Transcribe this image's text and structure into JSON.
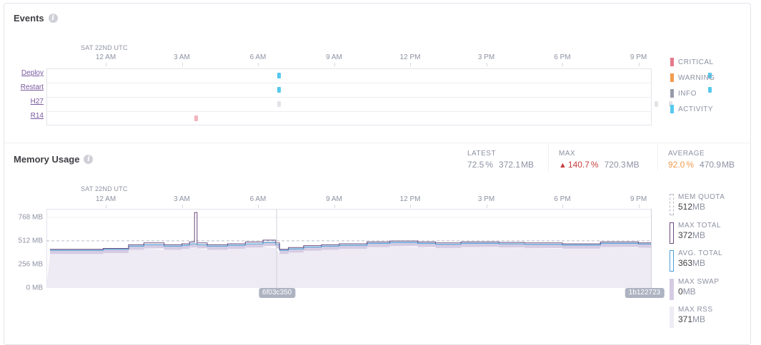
{
  "events": {
    "title": "Events",
    "date_label": "SAT 22ND UTC",
    "time_ticks": [
      "12 AM",
      "3 AM",
      "6 AM",
      "9 AM",
      "12 PM",
      "3 PM",
      "6 PM",
      "9 PM"
    ],
    "rows": [
      {
        "label": "Deploy",
        "marks": [
          {
            "hour": 6.83,
            "type": "activity"
          },
          {
            "hour": 23.8,
            "type": "activity"
          }
        ]
      },
      {
        "label": "Restart",
        "marks": [
          {
            "hour": 6.83,
            "type": "activity"
          },
          {
            "hour": 23.8,
            "type": "activity"
          }
        ]
      },
      {
        "label": "H27",
        "marks": [
          {
            "hour": 6.83,
            "type": "info_light"
          },
          {
            "hour": 21.7,
            "type": "info_light"
          },
          {
            "hour": 22.25,
            "type": "info_light"
          }
        ]
      },
      {
        "label": "R14",
        "marks": [
          {
            "hour": 3.55,
            "type": "critical"
          }
        ]
      }
    ],
    "legend": [
      {
        "label": "CRITICAL",
        "color": "#e6798a"
      },
      {
        "label": "WARNING",
        "color": "#f29b4e"
      },
      {
        "label": "INFO",
        "color": "#979bab"
      },
      {
        "label": "ACTIVITY",
        "color": "#56c9ee"
      }
    ],
    "colors": {
      "activity": "#56c9ee",
      "info_light": "#e2e3e8",
      "critical": "#f3b3bd"
    }
  },
  "memory": {
    "title": "Memory Usage",
    "date_label": "SAT 22ND UTC",
    "time_ticks": [
      "12 AM",
      "3 AM",
      "6 AM",
      "9 AM",
      "12 PM",
      "3 PM",
      "6 PM",
      "9 PM"
    ],
    "stats": {
      "latest": {
        "label": "LATEST",
        "pct": "72.5",
        "mb": "372.1"
      },
      "max": {
        "label": "MAX",
        "pct": "140.7",
        "mb": "720.3"
      },
      "average": {
        "label": "AVERAGE",
        "pct": "92.0",
        "mb": "470.9"
      },
      "pct_unit": "%",
      "mb_unit": "MB"
    },
    "y_ticks": [
      "768 MB",
      "512 MB",
      "256 MB",
      "0 MB"
    ],
    "commits": [
      {
        "label": "6f03c350",
        "hour": 6.75
      },
      {
        "label": "1b122723",
        "hour": 24.0
      }
    ],
    "legend": [
      {
        "label": "MEM QUOTA",
        "value": "512",
        "unit": "MB",
        "style": "quota"
      },
      {
        "label": "MAX TOTAL",
        "value": "372",
        "unit": "MB",
        "style": "max_total"
      },
      {
        "label": "AVG. TOTAL",
        "value": "363",
        "unit": "MB",
        "style": "avg_total"
      },
      {
        "label": "MAX SWAP",
        "value": "0",
        "unit": "MB",
        "style": "max_swap"
      },
      {
        "label": "MAX RSS",
        "value": "371",
        "unit": "MB",
        "style": "max_rss"
      }
    ],
    "colors": {
      "rss": "#eeebf4",
      "swap_band": "#d5cbe3",
      "max_total": "#6b4a7f",
      "avg_total": "#4b9fd6",
      "quota": "#b9bcc6",
      "latest_pct": "#8e92a3",
      "max_pct": "#c63e3e",
      "average_pct": "#f29b4e"
    },
    "chart_data": {
      "type": "area",
      "x_unit": "hour (UTC, from 12 AM)",
      "y_unit": "MB",
      "ylim": [
        0,
        860
      ],
      "quota_mb": 512,
      "series": [
        {
          "name": "MAX TOTAL",
          "x": [
            -2.2,
            -0.1,
            0.9,
            1.5,
            2.3,
            3.0,
            3.3,
            3.5,
            3.6,
            4.0,
            4.8,
            5.5,
            6.2,
            6.7,
            6.85,
            7.2,
            7.8,
            8.5,
            9.2,
            10.3,
            11.2,
            12.3,
            13.0,
            14.0,
            15.5,
            16.5,
            18.0,
            19.5,
            21.0,
            22.5,
            23.5,
            23.95,
            24.1
          ],
          "values": [
            420,
            430,
            470,
            490,
            470,
            480,
            500,
            820,
            490,
            470,
            480,
            500,
            520,
            490,
            420,
            440,
            460,
            470,
            480,
            500,
            510,
            500,
            490,
            500,
            495,
            490,
            480,
            500,
            490,
            490,
            495,
            480,
            380
          ]
        },
        {
          "name": "AVG. TOTAL",
          "x": [
            -2.2,
            -0.1,
            0.9,
            1.5,
            2.3,
            3.0,
            3.3,
            3.5,
            3.6,
            4.0,
            4.8,
            5.5,
            6.2,
            6.7,
            6.85,
            7.2,
            7.8,
            8.5,
            9.2,
            10.3,
            11.2,
            12.3,
            13.0,
            14.0,
            15.5,
            16.5,
            18.0,
            19.5,
            21.0,
            22.5,
            23.5,
            23.95,
            24.1
          ],
          "values": [
            410,
            420,
            455,
            470,
            455,
            465,
            480,
            480,
            470,
            455,
            465,
            480,
            495,
            470,
            410,
            425,
            445,
            455,
            465,
            485,
            495,
            485,
            475,
            485,
            480,
            475,
            468,
            485,
            478,
            478,
            480,
            470,
            370
          ]
        }
      ]
    }
  }
}
